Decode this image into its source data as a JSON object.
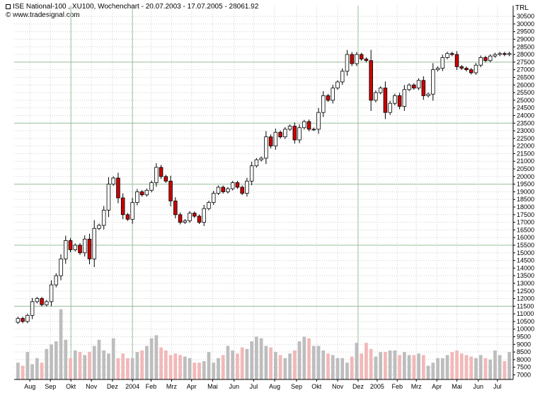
{
  "header": {
    "title": "ISE National-100 ,.XU100, Wochenchart - 20.07.2003 - 17.07.2005 - 28061.92",
    "source": "© www.tradesignal.com",
    "currency": "TRL"
  },
  "colors": {
    "up_body": "#ffffff",
    "down_body": "#cc0000",
    "up_volume": "#bdbdbd",
    "down_volume": "#f2b8b8",
    "grid": "#d0d0d0",
    "major_grid": "#9bbf9b"
  },
  "chart_data": {
    "type": "candlestick",
    "title": "ISE National-100 ,.XU100, Wochenchart - 20.07.2003 - 17.07.2005 - 28061.92",
    "ylim": [
      6700,
      31200
    ],
    "y_ticks": [
      7000,
      7500,
      8000,
      8500,
      9000,
      9500,
      10000,
      10500,
      11000,
      11500,
      12000,
      12500,
      13000,
      13500,
      14000,
      14500,
      15000,
      15500,
      16000,
      16500,
      17000,
      17500,
      18000,
      18500,
      19000,
      19500,
      20000,
      20500,
      21000,
      21500,
      22000,
      22500,
      23000,
      23500,
      24000,
      24500,
      25000,
      25500,
      26000,
      26500,
      27000,
      27500,
      28000,
      28500,
      29000,
      29500,
      30000,
      30500
    ],
    "major_y": [
      11500,
      15500,
      19500,
      23500,
      27500
    ],
    "x_labels": [
      "Aug",
      "Sep",
      "Okt",
      "Nov",
      "Dez",
      "2004",
      "Feb",
      "Mrz",
      "Apr",
      "Mai",
      "Jun",
      "Jul",
      "Aug",
      "Sep",
      "Okt",
      "Nov",
      "Dez",
      "2005",
      "Feb",
      "Mrz",
      "Apr",
      "Mai",
      "Jun",
      "Jul"
    ],
    "x_label_week": [
      2.5,
      6.8,
      11.1,
      15.4,
      19.8,
      24.0,
      27.9,
      32.2,
      36.4,
      40.8,
      45.3,
      49.4,
      53.8,
      58.4,
      62.6,
      67.0,
      71.3,
      75.3,
      79.5,
      83.5,
      87.8,
      92.0,
      96.5,
      100.5
    ],
    "major_x_week": [
      11.1,
      24.0,
      71.3
    ],
    "weeks": 104,
    "close": [
      10700,
      10500,
      10900,
      11800,
      12000,
      11600,
      11800,
      12900,
      13500,
      14600,
      15800,
      15200,
      15500,
      15000,
      15900,
      14600,
      16600,
      16800,
      17800,
      19500,
      19900,
      18600,
      17500,
      17200,
      18300,
      19000,
      18800,
      19100,
      19600,
      20600,
      20000,
      19700,
      18400,
      17500,
      17000,
      17100,
      17600,
      17400,
      17000,
      17900,
      18300,
      18900,
      19300,
      19000,
      19200,
      19600,
      19300,
      18900,
      19700,
      20700,
      21100,
      21200,
      22600,
      22000,
      22900,
      22600,
      23100,
      23300,
      22400,
      23200,
      23600,
      23100,
      23100,
      24200,
      25300,
      25000,
      25800,
      26200,
      26900,
      28000,
      27400,
      28000,
      27700,
      27600,
      25000,
      25500,
      25800,
      24200,
      24800,
      25300,
      24600,
      25700,
      26000,
      25800,
      26300,
      25300,
      25400,
      27000,
      27100,
      27800,
      28061.92,
      28000,
      27200,
      27100,
      27000,
      26800,
      27300,
      27800,
      27600,
      27900,
      28000,
      28061.92,
      28000,
      28061.92
    ],
    "volume": [
      7800,
      7600,
      8500,
      7700,
      8100,
      7800,
      8700,
      9000,
      9200,
      11300,
      9300,
      8100,
      8600,
      8500,
      8300,
      8500,
      8900,
      9300,
      8600,
      8400,
      9400,
      8100,
      8400,
      8100,
      8100,
      8500,
      8600,
      8900,
      9400,
      9600,
      8800,
      8600,
      8300,
      8400,
      8300,
      8200,
      8100,
      7800,
      7800,
      7900,
      8500,
      7800,
      8100,
      8300,
      8900,
      8600,
      8400,
      8800,
      8700,
      9200,
      9500,
      9400,
      8900,
      8800,
      8500,
      8300,
      8100,
      8400,
      8600,
      9200,
      9500,
      9400,
      8900,
      8900,
      8600,
      8400,
      8300,
      8100,
      8100,
      7800,
      8200,
      9100,
      8400,
      9100,
      8700,
      8200,
      8500,
      8500,
      8600,
      8600,
      8300,
      8500,
      8300,
      8300,
      8400,
      8300,
      7600,
      7800,
      8100,
      8100,
      8300,
      8500,
      8600,
      8400,
      8300,
      8200,
      8100,
      8300,
      8100,
      8000,
      8600,
      8300,
      7900,
      8500
    ]
  }
}
